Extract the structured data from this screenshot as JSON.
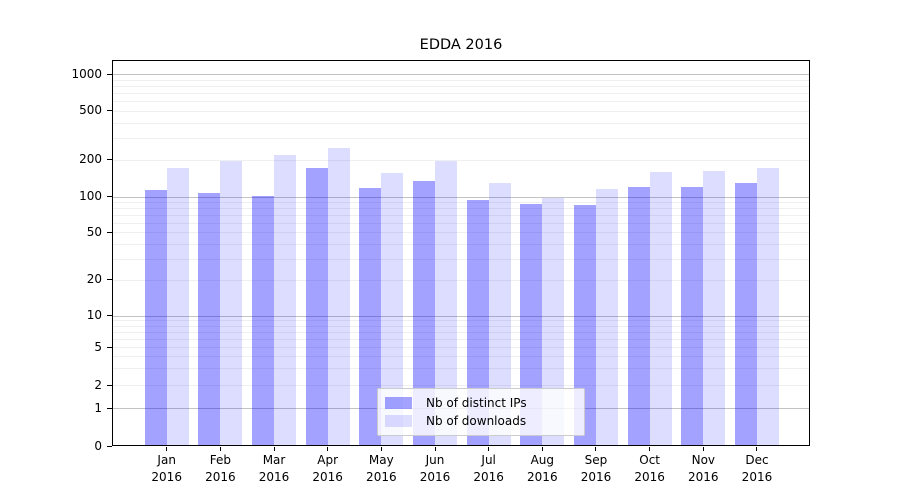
{
  "figure": {
    "title": "EDDA 2016"
  },
  "chart_data": {
    "type": "bar",
    "title": "EDDA 2016",
    "categories": [
      "Jan",
      "Feb",
      "Mar",
      "Apr",
      "May",
      "Jun",
      "Jul",
      "Aug",
      "Sep",
      "Oct",
      "Nov",
      "Dec"
    ],
    "category_year": "2016",
    "series": [
      {
        "name": "Nb of distinct IPs",
        "color": "rgba(0,0,255,0.36)",
        "approx_hex": "#a3a3f2",
        "values": [
          113,
          108,
          101,
          171,
          117,
          135,
          93,
          86,
          85,
          121,
          119,
          129
        ]
      },
      {
        "name": "Nb of downloads",
        "color": "rgba(0,0,255,0.135)",
        "approx_hex": "#dbdbf9",
        "values": [
          172,
          196,
          220,
          248,
          156,
          195,
          130,
          98,
          115,
          160,
          162,
          173
        ]
      }
    ],
    "y_axis": {
      "scale": "symlog",
      "tick_labels_top_to_bottom": [
        "1000",
        "500",
        "200",
        "100",
        "50",
        "20",
        "10",
        "5",
        "2",
        "1",
        "0"
      ],
      "tick_values": [
        1000,
        500,
        200,
        100,
        50,
        20,
        10,
        5,
        2,
        1,
        0
      ],
      "range": [
        0,
        1300
      ],
      "minor_grid_values": [
        2,
        3,
        4,
        5,
        6,
        7,
        8,
        9,
        20,
        30,
        40,
        50,
        60,
        70,
        80,
        90,
        200,
        300,
        400,
        500,
        600,
        700,
        800,
        900
      ],
      "major_grid_values": [
        1,
        10,
        100,
        1000
      ]
    },
    "x_axis": {
      "label_line_2": "2016"
    },
    "legend": {
      "position": "lower-center",
      "entries": [
        "Nb of distinct IPs",
        "Nb of downloads"
      ]
    },
    "grid": true,
    "colors": {
      "frame": "#000000",
      "major_grid": "#c3c3c3",
      "minor_grid": "#efefef",
      "background": "#ffffff"
    }
  }
}
